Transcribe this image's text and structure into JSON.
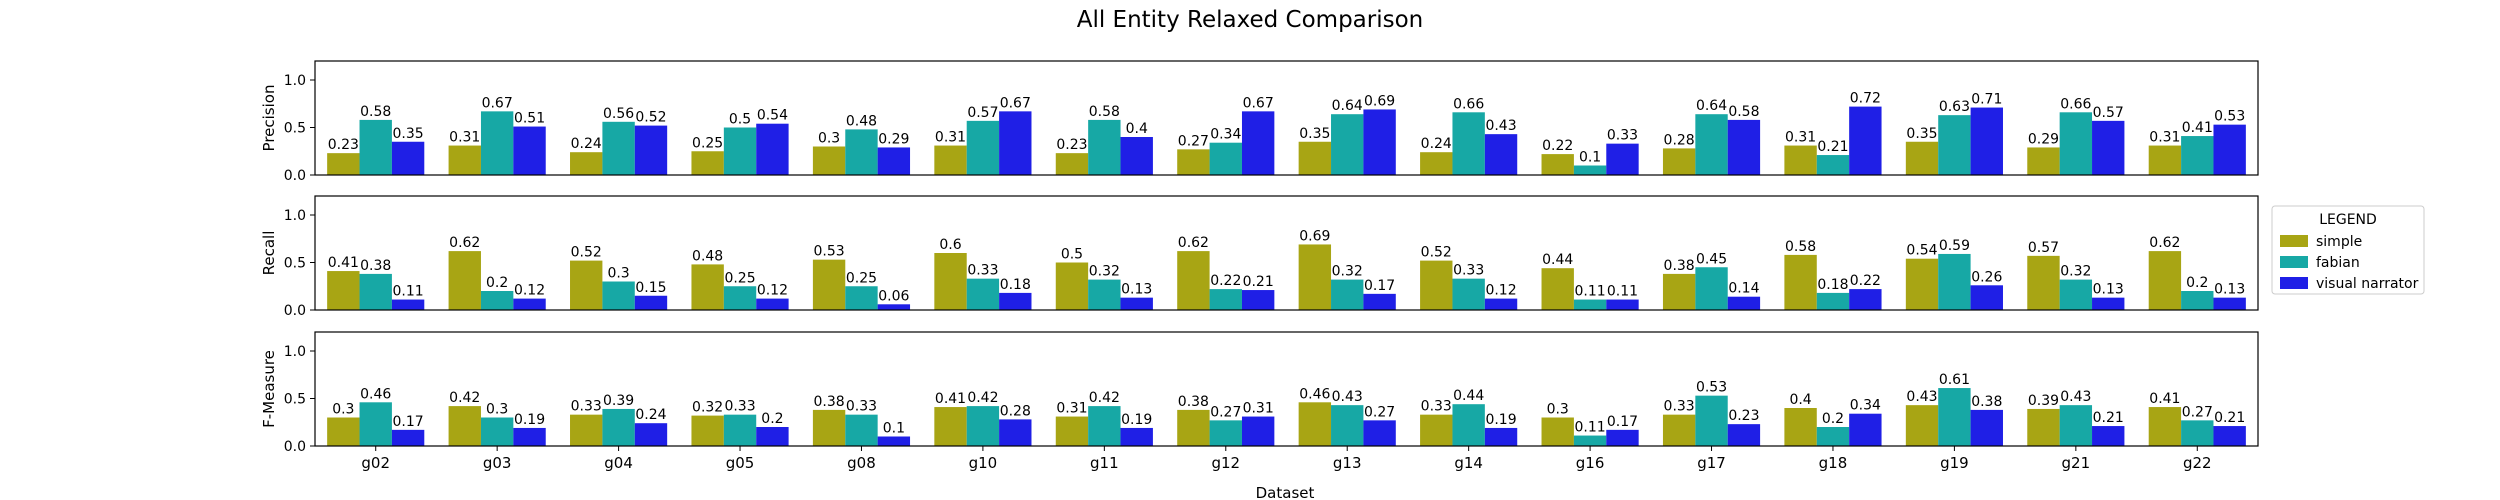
{
  "chart_data": {
    "type": "bar",
    "title": "All Entity Relaxed Comparison",
    "xlabel": "Dataset",
    "categories": [
      "g02",
      "g03",
      "g04",
      "g05",
      "g08",
      "g10",
      "g11",
      "g12",
      "g13",
      "g14",
      "g16",
      "g17",
      "g18",
      "g19",
      "g21",
      "g22"
    ],
    "ylim": [
      0,
      1.2
    ],
    "yticks": [
      "0.0",
      "0.5",
      "1.0"
    ],
    "legend": {
      "title": "LEGEND",
      "placement": "right",
      "entries": [
        "simple",
        "fabian",
        "visual narrator"
      ]
    },
    "colors": {
      "simple": "#a8a514",
      "fabian": "#17a8a5",
      "visual narrator": "#1f1fe6"
    },
    "panels": [
      {
        "ylabel": "Precision",
        "series": [
          {
            "name": "simple",
            "values": [
              0.23,
              0.31,
              0.24,
              0.25,
              0.3,
              0.31,
              0.23,
              0.27,
              0.35,
              0.24,
              0.22,
              0.28,
              0.31,
              0.35,
              0.29,
              0.31
            ]
          },
          {
            "name": "fabian",
            "values": [
              0.58,
              0.67,
              0.56,
              0.5,
              0.48,
              0.57,
              0.58,
              0.34,
              0.64,
              0.66,
              0.1,
              0.64,
              0.21,
              0.63,
              0.66,
              0.41
            ]
          },
          {
            "name": "visual narrator",
            "values": [
              0.35,
              0.51,
              0.52,
              0.54,
              0.29,
              0.67,
              0.4,
              0.67,
              0.69,
              0.43,
              0.33,
              0.58,
              0.72,
              0.71,
              0.57,
              0.53
            ]
          }
        ]
      },
      {
        "ylabel": "Recall",
        "series": [
          {
            "name": "simple",
            "values": [
              0.41,
              0.62,
              0.52,
              0.48,
              0.53,
              0.6,
              0.5,
              0.62,
              0.69,
              0.52,
              0.44,
              0.38,
              0.58,
              0.54,
              0.57,
              0.62
            ]
          },
          {
            "name": "fabian",
            "values": [
              0.38,
              0.2,
              0.3,
              0.25,
              0.25,
              0.33,
              0.32,
              0.22,
              0.32,
              0.33,
              0.11,
              0.45,
              0.18,
              0.59,
              0.32,
              0.2
            ]
          },
          {
            "name": "visual narrator",
            "values": [
              0.11,
              0.12,
              0.15,
              0.12,
              0.06,
              0.18,
              0.13,
              0.21,
              0.17,
              0.12,
              0.11,
              0.14,
              0.22,
              0.26,
              0.13,
              0.13
            ]
          }
        ]
      },
      {
        "ylabel": "F-Measure",
        "series": [
          {
            "name": "simple",
            "values": [
              0.3,
              0.42,
              0.33,
              0.32,
              0.38,
              0.41,
              0.31,
              0.38,
              0.46,
              0.33,
              0.3,
              0.33,
              0.4,
              0.43,
              0.39,
              0.41
            ]
          },
          {
            "name": "fabian",
            "values": [
              0.46,
              0.3,
              0.39,
              0.33,
              0.33,
              0.42,
              0.42,
              0.27,
              0.43,
              0.44,
              0.11,
              0.53,
              0.2,
              0.61,
              0.43,
              0.27
            ]
          },
          {
            "name": "visual narrator",
            "values": [
              0.17,
              0.19,
              0.24,
              0.2,
              0.1,
              0.28,
              0.19,
              0.31,
              0.27,
              0.19,
              0.17,
              0.23,
              0.34,
              0.38,
              0.21,
              0.21
            ]
          }
        ]
      }
    ]
  }
}
